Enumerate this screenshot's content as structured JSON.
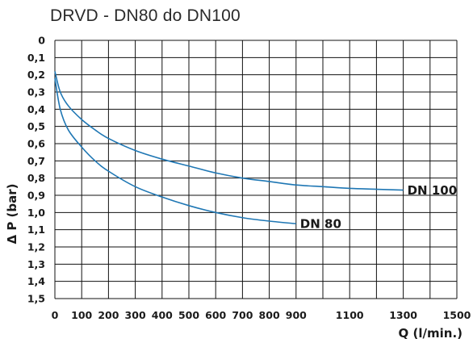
{
  "chart_data": {
    "type": "line",
    "title": "DRVD - DN80 do DN100",
    "xlabel": "Q (l/min.)",
    "ylabel": "Δ P (bar)",
    "xlim": [
      0,
      1500
    ],
    "ylim": [
      0,
      1.5
    ],
    "y_inverted": true,
    "grid": true,
    "line_color": "#1f77b4",
    "x_ticks": [
      0,
      100,
      200,
      300,
      400,
      500,
      600,
      700,
      800,
      900,
      1100,
      1300,
      1500
    ],
    "x_tick_labels": [
      "0",
      "100",
      "200",
      "300",
      "400",
      "500",
      "600",
      "700",
      "800",
      "900",
      "1100",
      "1300",
      "1500"
    ],
    "y_ticks": [
      0,
      0.1,
      0.2,
      0.3,
      0.4,
      0.5,
      0.6,
      0.7,
      0.8,
      0.9,
      1.0,
      1.1,
      1.2,
      1.3,
      1.4,
      1.5
    ],
    "y_tick_labels": [
      "0",
      "0,1",
      "0,2",
      "0,3",
      "0,4",
      "0,5",
      "0,6",
      "0,7",
      "0,8",
      "0,9",
      "1,0",
      "1,1",
      "1,2",
      "1,3",
      "1,4",
      "1,5"
    ],
    "series": [
      {
        "name": "DN 100",
        "points": [
          [
            0,
            0.18
          ],
          [
            20,
            0.3
          ],
          [
            50,
            0.38
          ],
          [
            100,
            0.46
          ],
          [
            150,
            0.52
          ],
          [
            200,
            0.57
          ],
          [
            300,
            0.64
          ],
          [
            400,
            0.69
          ],
          [
            500,
            0.73
          ],
          [
            600,
            0.77
          ],
          [
            700,
            0.8
          ],
          [
            800,
            0.82
          ],
          [
            900,
            0.84
          ],
          [
            1000,
            0.85
          ],
          [
            1100,
            0.86
          ],
          [
            1200,
            0.865
          ],
          [
            1300,
            0.87
          ]
        ]
      },
      {
        "name": "DN 80",
        "points": [
          [
            0,
            0.22
          ],
          [
            20,
            0.4
          ],
          [
            50,
            0.52
          ],
          [
            100,
            0.62
          ],
          [
            150,
            0.7
          ],
          [
            200,
            0.76
          ],
          [
            300,
            0.85
          ],
          [
            400,
            0.91
          ],
          [
            500,
            0.96
          ],
          [
            600,
            1.0
          ],
          [
            700,
            1.03
          ],
          [
            800,
            1.05
          ],
          [
            900,
            1.065
          ]
        ]
      }
    ]
  }
}
